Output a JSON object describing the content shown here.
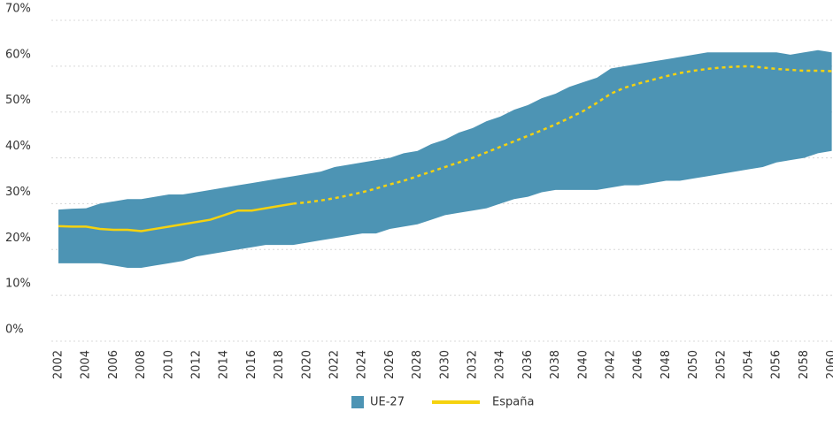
{
  "chart_data": {
    "type": "band-line",
    "categories": [
      "2002",
      null,
      "2004",
      null,
      "2006",
      null,
      "2008",
      null,
      "2010",
      null,
      "2012",
      null,
      "2014",
      null,
      "2016",
      null,
      "2018",
      null,
      "2020",
      null,
      "2022",
      null,
      "2024",
      null,
      "2026",
      null,
      "2028",
      null,
      "2030",
      null,
      "2032",
      null,
      "2034",
      null,
      "2036",
      null,
      "2038",
      null,
      "2040",
      null,
      "2042",
      null,
      "2046",
      null,
      "2048",
      null,
      "2050",
      null,
      "2052",
      null,
      "2054",
      null,
      "2056",
      null,
      "2058",
      null,
      "2060"
    ],
    "series": [
      {
        "name": "UE-27",
        "color": "#4d94b4",
        "high": [
          28.7,
          28.9,
          29,
          30,
          30.5,
          31,
          31,
          31.5,
          32,
          32,
          32.5,
          33,
          33.5,
          34,
          34.5,
          35,
          35.5,
          36,
          36.5,
          37,
          38,
          38.5,
          39,
          39.5,
          40,
          41,
          41.5,
          43,
          44,
          45.5,
          46.5,
          48,
          49,
          50.5,
          51.5,
          53,
          54,
          55.5,
          56.5,
          57.5,
          59.5,
          60,
          60.5,
          61,
          61.5,
          62,
          62.5,
          63,
          63,
          63,
          63,
          63,
          63,
          62.5,
          63,
          63.5,
          63
        ],
        "low": [
          17,
          17,
          17,
          17,
          16.5,
          16,
          16,
          16.5,
          17,
          17.5,
          18.5,
          19,
          19.5,
          20,
          20.5,
          21,
          21,
          21,
          21.5,
          22,
          22.5,
          23,
          23.5,
          23.5,
          24.5,
          25,
          25.5,
          26.5,
          27.5,
          28,
          28.5,
          29,
          30,
          31,
          31.5,
          32.5,
          33,
          33,
          33,
          33,
          33.5,
          34,
          34,
          34.5,
          35,
          35,
          35.5,
          36,
          36.5,
          37,
          37.5,
          38,
          39,
          39.5,
          40,
          41,
          41.5
        ]
      },
      {
        "name": "España",
        "color": "#f5d20f",
        "dashed_from_index": 17,
        "values": [
          25.1,
          25,
          25,
          24.5,
          24.3,
          24.3,
          24,
          24.5,
          25,
          25.5,
          26,
          26.5,
          27.5,
          28.5,
          28.5,
          29,
          29.5,
          30,
          30.3,
          30.7,
          31.2,
          31.8,
          32.5,
          33.3,
          34.2,
          35,
          36,
          37,
          38,
          39,
          40,
          41.2,
          42.4,
          43.6,
          44.8,
          46,
          47.3,
          48.7,
          50.2,
          52,
          54,
          55.3,
          56.2,
          57,
          57.8,
          58.5,
          59,
          59.4,
          59.7,
          59.9,
          60,
          59.7,
          59.4,
          59.2,
          59,
          59,
          58.9
        ]
      }
    ],
    "ylim": [
      0,
      70
    ],
    "yticks": [
      {
        "value": 0,
        "label": "0%"
      },
      {
        "value": 10,
        "label": "10%"
      },
      {
        "value": 20,
        "label": "20%"
      },
      {
        "value": 30,
        "label": "30%"
      },
      {
        "value": 40,
        "label": "40%"
      },
      {
        "value": 50,
        "label": "50%"
      },
      {
        "value": 60,
        "label": "60%"
      },
      {
        "value": 70,
        "label": "70%"
      }
    ],
    "grid": true,
    "legend": "bottom"
  }
}
